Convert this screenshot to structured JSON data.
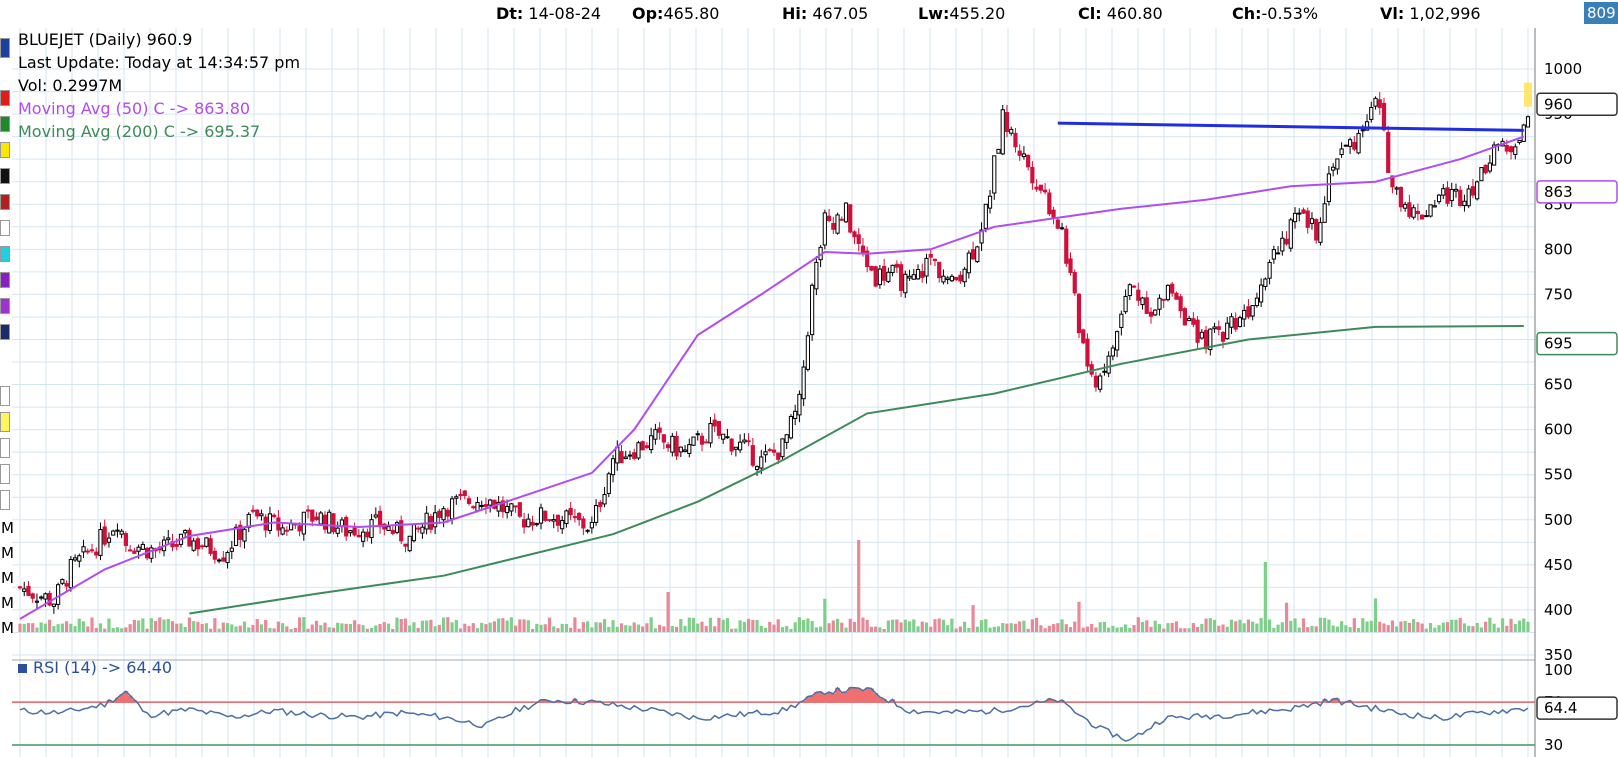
{
  "header": {
    "dt_label": "Dt:",
    "dt_value": "14-08-24",
    "op_label": "Op:",
    "op_value": "465.80",
    "hi_label": "Hi:",
    "hi_value": "467.05",
    "lw_label": "Lw:",
    "lw_value": "455.20",
    "cl_label": "Cl:",
    "cl_value": "460.80",
    "ch_label": "Ch:",
    "ch_value": "-0.53%",
    "vl_label": "Vl:",
    "vl_value": "1,02,996",
    "corner_badge": "809"
  },
  "legend": {
    "title": "BLUEJET (Daily) 960.9",
    "last_update": "Last Update: Today at 14:34:57 pm",
    "volume": "Vol: 0.2997M",
    "ma50": "Moving Avg (50) C -> 863.80",
    "ma200": "Moving Avg (200) C -> 695.37"
  },
  "rsi": {
    "label": "RSI (14) -> 64.40"
  },
  "colors": {
    "up": "#000000",
    "down": "#d0103a",
    "ma50": "#b04cf0",
    "ma200": "#3d8a5a",
    "trendline": "#1f2ee0",
    "vol_up": "#7fcf8a",
    "vol_down": "#e8899a",
    "rsi_line": "#4a6fa5",
    "rsi_fill": "#f07070",
    "rsi_70": "#e06060",
    "rsi_30": "#3d9a5a",
    "grid": "#d4e6f0",
    "price_tag_yellow": "#ffe24a"
  },
  "chart_data": {
    "type": "candlestick",
    "price_axis": {
      "ticks": [
        "1000",
        "950",
        "900",
        "850",
        "800",
        "750",
        "700",
        "650",
        "600",
        "550",
        "500",
        "450",
        "400",
        "350"
      ],
      "ylim": [
        350,
        1020
      ]
    },
    "rsi_axis": {
      "ticks": [
        "100",
        "70",
        "30"
      ],
      "ylim": [
        30,
        100
      ]
    },
    "volume_axis": {
      "ticks": [
        "M",
        "M",
        "M",
        "M",
        "M"
      ]
    },
    "price_tags": [
      "960",
      "863",
      "695"
    ],
    "rsi_tag": "64.4",
    "left_labels": [
      "M",
      "M",
      "M",
      "M",
      "M"
    ],
    "anchors": [
      [
        0,
        425
      ],
      [
        8,
        410
      ],
      [
        12,
        445
      ],
      [
        20,
        482
      ],
      [
        23,
        500
      ],
      [
        25,
        475
      ],
      [
        32,
        465
      ],
      [
        40,
        478
      ],
      [
        48,
        463
      ],
      [
        55,
        505
      ],
      [
        62,
        490
      ],
      [
        70,
        505
      ],
      [
        77,
        488
      ],
      [
        85,
        495
      ],
      [
        92,
        478
      ],
      [
        100,
        515
      ],
      [
        110,
        525
      ],
      [
        118,
        500
      ],
      [
        125,
        505
      ],
      [
        135,
        492
      ],
      [
        140,
        568
      ],
      [
        150,
        590
      ],
      [
        157,
        575
      ],
      [
        163,
        598
      ],
      [
        170,
        582
      ],
      [
        175,
        565
      ],
      [
        180,
        580
      ],
      [
        184,
        628
      ],
      [
        187,
        755
      ],
      [
        190,
        830
      ],
      [
        195,
        840
      ],
      [
        198,
        800
      ],
      [
        202,
        770
      ],
      [
        205,
        775
      ],
      [
        210,
        760
      ],
      [
        215,
        790
      ],
      [
        220,
        760
      ],
      [
        225,
        800
      ],
      [
        228,
        840
      ],
      [
        232,
        945
      ],
      [
        236,
        910
      ],
      [
        242,
        860
      ],
      [
        246,
        820
      ],
      [
        249,
        740
      ],
      [
        253,
        650
      ],
      [
        257,
        675
      ],
      [
        262,
        760
      ],
      [
        268,
        730
      ],
      [
        272,
        760
      ],
      [
        278,
        695
      ],
      [
        284,
        710
      ],
      [
        290,
        735
      ],
      [
        296,
        800
      ],
      [
        302,
        835
      ],
      [
        306,
        820
      ],
      [
        310,
        900
      ],
      [
        316,
        925
      ],
      [
        320,
        975
      ],
      [
        324,
        870
      ],
      [
        330,
        835
      ],
      [
        335,
        860
      ],
      [
        340,
        860
      ],
      [
        345,
        880
      ],
      [
        348,
        920
      ],
      [
        351,
        905
      ],
      [
        355,
        940
      ]
    ],
    "ma50": [
      [
        0,
        390
      ],
      [
        20,
        445
      ],
      [
        40,
        482
      ],
      [
        60,
        497
      ],
      [
        80,
        492
      ],
      [
        100,
        497
      ],
      [
        118,
        525
      ],
      [
        135,
        552
      ],
      [
        145,
        600
      ],
      [
        160,
        705
      ],
      [
        175,
        750
      ],
      [
        190,
        797
      ],
      [
        200,
        795
      ],
      [
        215,
        800
      ],
      [
        230,
        825
      ],
      [
        245,
        835
      ],
      [
        260,
        845
      ],
      [
        280,
        855
      ],
      [
        300,
        870
      ],
      [
        320,
        875
      ],
      [
        340,
        900
      ],
      [
        355,
        925
      ]
    ],
    "ma200": [
      [
        40,
        396
      ],
      [
        70,
        418
      ],
      [
        100,
        438
      ],
      [
        140,
        484
      ],
      [
        160,
        520
      ],
      [
        180,
        566
      ],
      [
        200,
        618
      ],
      [
        230,
        640
      ],
      [
        260,
        673
      ],
      [
        290,
        700
      ],
      [
        320,
        714
      ],
      [
        355,
        715
      ]
    ],
    "trendline": {
      "start": [
        245,
        940
      ],
      "end": [
        355,
        932
      ]
    },
    "rsi_values": [
      [
        0,
        62
      ],
      [
        10,
        60
      ],
      [
        20,
        68
      ],
      [
        25,
        80
      ],
      [
        30,
        58
      ],
      [
        40,
        63
      ],
      [
        50,
        56
      ],
      [
        60,
        62
      ],
      [
        70,
        58
      ],
      [
        80,
        56
      ],
      [
        90,
        60
      ],
      [
        100,
        56
      ],
      [
        110,
        48
      ],
      [
        118,
        64
      ],
      [
        125,
        72
      ],
      [
        135,
        70
      ],
      [
        150,
        62
      ],
      [
        160,
        55
      ],
      [
        180,
        62
      ],
      [
        190,
        80
      ],
      [
        200,
        82
      ],
      [
        210,
        62
      ],
      [
        220,
        60
      ],
      [
        230,
        62
      ],
      [
        245,
        72
      ],
      [
        255,
        45
      ],
      [
        262,
        34
      ],
      [
        270,
        55
      ],
      [
        285,
        58
      ],
      [
        300,
        64
      ],
      [
        310,
        72
      ],
      [
        325,
        60
      ],
      [
        335,
        55
      ],
      [
        345,
        60
      ],
      [
        355,
        64
      ]
    ]
  }
}
